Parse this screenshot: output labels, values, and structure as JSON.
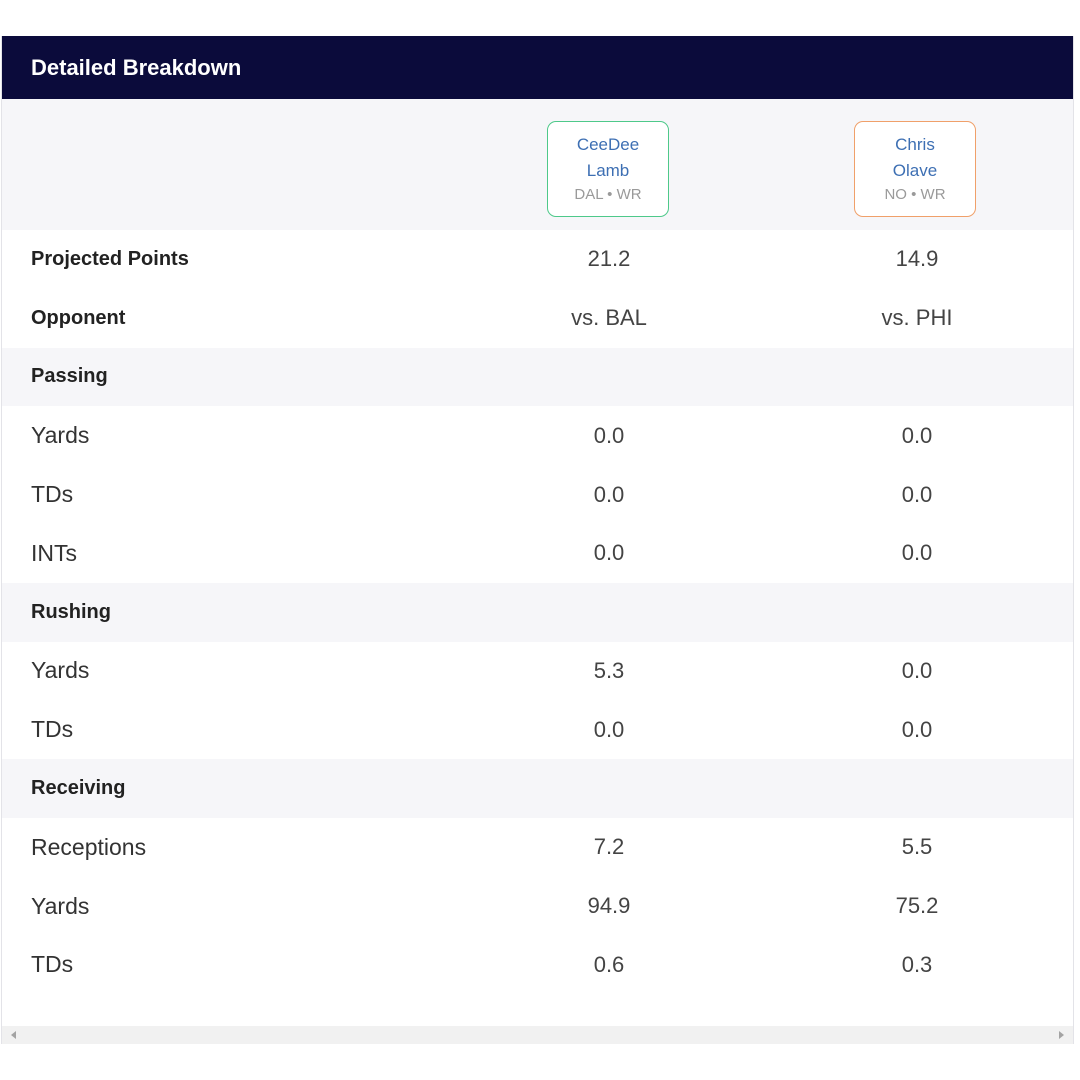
{
  "header": {
    "title": "Detailed Breakdown"
  },
  "players": [
    {
      "first": "CeeDee",
      "last": "Lamb",
      "meta": "DAL • WR",
      "accent": "#4ec98a"
    },
    {
      "first": "Chris",
      "last": "Olave",
      "meta": "NO • WR",
      "accent": "#f0a06a"
    }
  ],
  "summary_rows": [
    {
      "label": "Projected Points",
      "a": "21.2",
      "b": "14.9"
    },
    {
      "label": "Opponent",
      "a": "vs. BAL",
      "b": "vs. PHI"
    }
  ],
  "sections": [
    {
      "title": "Passing",
      "rows": [
        {
          "label": "Yards",
          "a": "0.0",
          "b": "0.0"
        },
        {
          "label": "TDs",
          "a": "0.0",
          "b": "0.0"
        },
        {
          "label": "INTs",
          "a": "0.0",
          "b": "0.0"
        }
      ]
    },
    {
      "title": "Rushing",
      "rows": [
        {
          "label": "Yards",
          "a": "5.3",
          "b": "0.0"
        },
        {
          "label": "TDs",
          "a": "0.0",
          "b": "0.0"
        }
      ]
    },
    {
      "title": "Receiving",
      "rows": [
        {
          "label": "Receptions",
          "a": "7.2",
          "b": "5.5"
        },
        {
          "label": "Yards",
          "a": "94.9",
          "b": "75.2"
        },
        {
          "label": "TDs",
          "a": "0.6",
          "b": "0.3"
        }
      ]
    }
  ],
  "colors": {
    "header_bg": "#0b0b3b",
    "section_bg": "#f6f6f9",
    "player_name": "#3d6fb3"
  }
}
